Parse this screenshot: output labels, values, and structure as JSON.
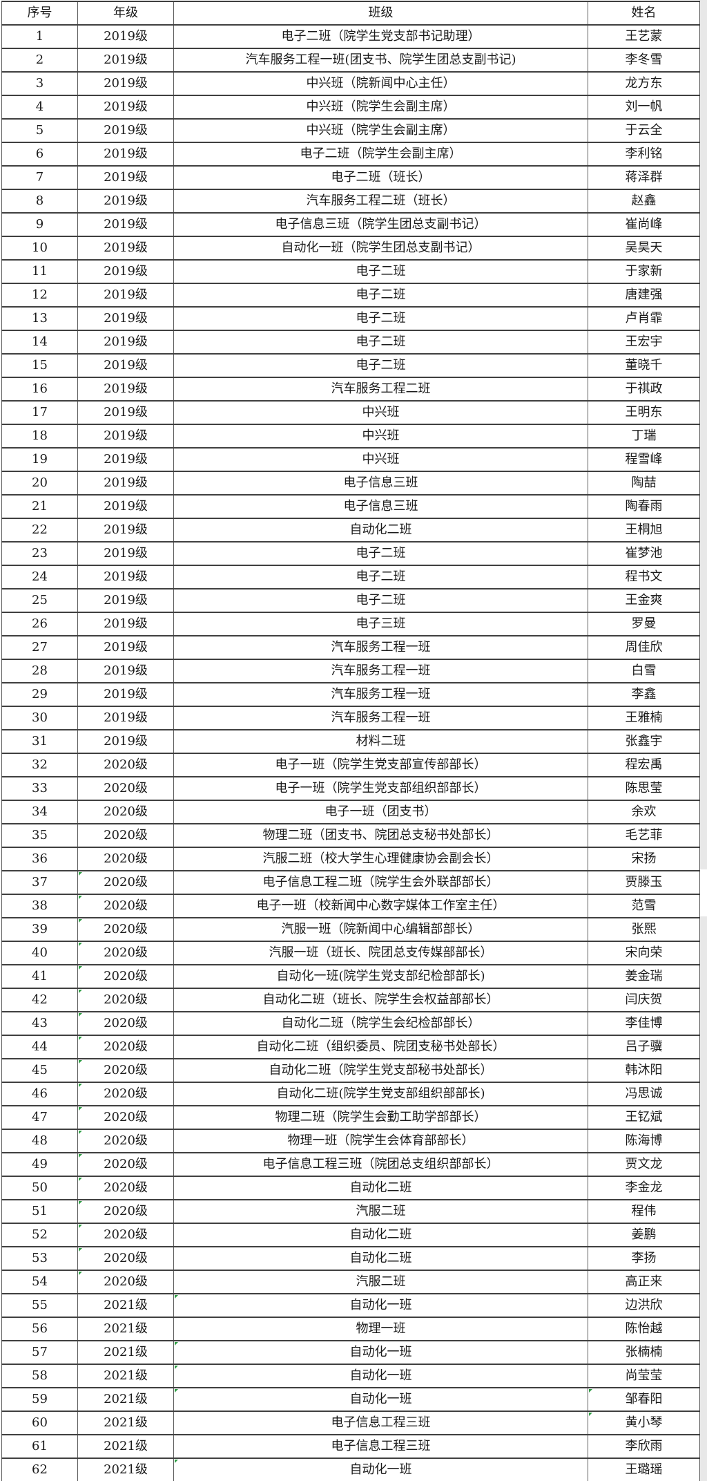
{
  "table": {
    "columns": [
      "序号",
      "年级",
      "班级",
      "姓名"
    ],
    "green_marks": {
      "grade_rows": [
        37,
        38,
        39,
        40,
        41,
        42,
        43,
        44,
        45,
        46,
        47,
        48,
        49,
        50,
        51,
        52,
        53,
        54
      ],
      "class_rows": [
        55,
        57,
        58,
        59,
        62
      ],
      "name_rows": [
        59,
        60
      ]
    },
    "quirks": {
      "thin_divider_after_row": 37
    },
    "colors": {
      "border_dark": "#3f3f3f",
      "border_mid": "#5a5a5a",
      "text": "#1b1b1b",
      "green_mark": "#2f9e44",
      "right_gutter": "#e8e8e8"
    },
    "rows": [
      {
        "no": "1",
        "grade": "2019级",
        "class": "电子二班（院学生党支部书记助理）",
        "name": "王艺蒙"
      },
      {
        "no": "2",
        "grade": "2019级",
        "class": "汽车服务工程一班(团支书、院学生团总支副书记)",
        "name": "李冬雪"
      },
      {
        "no": "3",
        "grade": "2019级",
        "class": "中兴班（院新闻中心主任）",
        "name": "龙方东"
      },
      {
        "no": "4",
        "grade": "2019级",
        "class": "中兴班（院学生会副主席）",
        "name": "刘一帆"
      },
      {
        "no": "5",
        "grade": "2019级",
        "class": "中兴班（院学生会副主席）",
        "name": "于云全"
      },
      {
        "no": "6",
        "grade": "2019级",
        "class": "电子二班（院学生会副主席）",
        "name": "李利铭"
      },
      {
        "no": "7",
        "grade": "2019级",
        "class": "电子二班（班长）",
        "name": "蒋泽群"
      },
      {
        "no": "8",
        "grade": "2019级",
        "class": "汽车服务工程二班（班长）",
        "name": "赵鑫"
      },
      {
        "no": "9",
        "grade": "2019级",
        "class": "电子信息三班（院学生团总支副书记）",
        "name": "崔尚峰"
      },
      {
        "no": "10",
        "grade": "2019级",
        "class": "自动化一班（院学生团总支副书记）",
        "name": "吴昊天"
      },
      {
        "no": "11",
        "grade": "2019级",
        "class": "电子二班",
        "name": "于家新"
      },
      {
        "no": "12",
        "grade": "2019级",
        "class": "电子二班",
        "name": "唐建强"
      },
      {
        "no": "13",
        "grade": "2019级",
        "class": "电子二班",
        "name": "卢肖霏"
      },
      {
        "no": "14",
        "grade": "2019级",
        "class": "电子二班",
        "name": "王宏宇"
      },
      {
        "no": "15",
        "grade": "2019级",
        "class": "电子二班",
        "name": "董晓千"
      },
      {
        "no": "16",
        "grade": "2019级",
        "class": "汽车服务工程二班",
        "name": "于祺政"
      },
      {
        "no": "17",
        "grade": "2019级",
        "class": "中兴班",
        "name": "王明东"
      },
      {
        "no": "18",
        "grade": "2019级",
        "class": "中兴班",
        "name": "丁瑞"
      },
      {
        "no": "19",
        "grade": "2019级",
        "class": "中兴班",
        "name": "程雪峰"
      },
      {
        "no": "20",
        "grade": "2019级",
        "class": "电子信息三班",
        "name": "陶喆"
      },
      {
        "no": "21",
        "grade": "2019级",
        "class": "电子信息三班",
        "name": "陶春雨"
      },
      {
        "no": "22",
        "grade": "2019级",
        "class": "自动化二班",
        "name": "王桐旭"
      },
      {
        "no": "23",
        "grade": "2019级",
        "class": "电子二班",
        "name": "崔梦池"
      },
      {
        "no": "24",
        "grade": "2019级",
        "class": "电子二班",
        "name": "程书文"
      },
      {
        "no": "25",
        "grade": "2019级",
        "class": "电子二班",
        "name": "王金爽"
      },
      {
        "no": "26",
        "grade": "2019级",
        "class": "电子三班",
        "name": "罗曼"
      },
      {
        "no": "27",
        "grade": "2019级",
        "class": "汽车服务工程一班",
        "name": "周佳欣"
      },
      {
        "no": "28",
        "grade": "2019级",
        "class": "汽车服务工程一班",
        "name": "白雪"
      },
      {
        "no": "29",
        "grade": "2019级",
        "class": "汽车服务工程一班",
        "name": "李鑫"
      },
      {
        "no": "30",
        "grade": "2019级",
        "class": "汽车服务工程一班",
        "name": "王雅楠"
      },
      {
        "no": "31",
        "grade": "2019级",
        "class": "材料二班",
        "name": "张鑫宇"
      },
      {
        "no": "32",
        "grade": "2020级",
        "class": "电子一班（院学生党支部宣传部部长）",
        "name": "程宏禹"
      },
      {
        "no": "33",
        "grade": "2020级",
        "class": "电子一班（院学生党支部组织部部长）",
        "name": "陈思莹"
      },
      {
        "no": "34",
        "grade": "2020级",
        "class": "电子一班（团支书）",
        "name": "余欢"
      },
      {
        "no": "35",
        "grade": "2020级",
        "class": "物理二班（团支书、院团总支秘书处部长）",
        "name": "毛艺菲"
      },
      {
        "no": "36",
        "grade": "2020级",
        "class": "汽服二班（校大学生心理健康协会副会长）",
        "name": "宋扬"
      },
      {
        "no": "37",
        "grade": "2020级",
        "class": "电子信息工程二班（院学生会外联部部长）",
        "name": "贾滕玉"
      },
      {
        "no": "38",
        "grade": "2020级",
        "class": "电子一班（校新闻中心数字媒体工作室主任）",
        "name": "范雪"
      },
      {
        "no": "39",
        "grade": "2020级",
        "class": "汽服一班（院新闻中心编辑部部长）",
        "name": "张熙"
      },
      {
        "no": "40",
        "grade": "2020级",
        "class": "汽服一班（班长、院团总支传媒部部长）",
        "name": "宋向荣"
      },
      {
        "no": "41",
        "grade": "2020级",
        "class": "自动化一班(院学生党支部纪检部部长)",
        "name": "姜金瑞"
      },
      {
        "no": "42",
        "grade": "2020级",
        "class": "自动化二班（班长、院学生会权益部部长）",
        "name": "闫庆贺"
      },
      {
        "no": "43",
        "grade": "2020级",
        "class": "自动化二班（院学生会纪检部部长）",
        "name": "李佳博"
      },
      {
        "no": "44",
        "grade": "2020级",
        "class": "自动化二班（组织委员、院团支秘书处部长）",
        "name": "吕子骥"
      },
      {
        "no": "45",
        "grade": "2020级",
        "class": "自动化二班（院学生党支部秘书处部长）",
        "name": "韩沐阳"
      },
      {
        "no": "46",
        "grade": "2020级",
        "class": "自动化二班(院学生党支部组织部部长)",
        "name": "冯思诚"
      },
      {
        "no": "47",
        "grade": "2020级",
        "class": "物理二班（院学生会勤工助学部部长）",
        "name": "王钇斌"
      },
      {
        "no": "48",
        "grade": "2020级",
        "class": "物理一班（院学生会体育部部长）",
        "name": "陈海博"
      },
      {
        "no": "49",
        "grade": "2020级",
        "class": "电子信息工程三班（院团总支组织部部长）",
        "name": "贾文龙"
      },
      {
        "no": "50",
        "grade": "2020级",
        "class": "自动化二班",
        "name": "李金龙"
      },
      {
        "no": "51",
        "grade": "2020级",
        "class": "汽服二班",
        "name": "程伟"
      },
      {
        "no": "52",
        "grade": "2020级",
        "class": "自动化二班",
        "name": "姜鹏"
      },
      {
        "no": "53",
        "grade": "2020级",
        "class": "自动化二班",
        "name": "李扬"
      },
      {
        "no": "54",
        "grade": "2020级",
        "class": "汽服二班",
        "name": "高正来"
      },
      {
        "no": "55",
        "grade": "2021级",
        "class": "自动化一班",
        "name": "边洪欣"
      },
      {
        "no": "56",
        "grade": "2021级",
        "class": "物理一班",
        "name": "陈怡越"
      },
      {
        "no": "57",
        "grade": "2021级",
        "class": "自动化一班",
        "name": "张楠楠"
      },
      {
        "no": "58",
        "grade": "2021级",
        "class": "自动化一班",
        "name": "尚莹莹"
      },
      {
        "no": "59",
        "grade": "2021级",
        "class": "自动化一班",
        "name": "邹春阳"
      },
      {
        "no": "60",
        "grade": "2021级",
        "class": "电子信息工程三班",
        "name": "黄小琴"
      },
      {
        "no": "61",
        "grade": "2021级",
        "class": "电子信息工程三班",
        "name": "李欣雨"
      },
      {
        "no": "62",
        "grade": "2021级",
        "class": "自动化一班",
        "name": "王璐瑶"
      }
    ]
  }
}
